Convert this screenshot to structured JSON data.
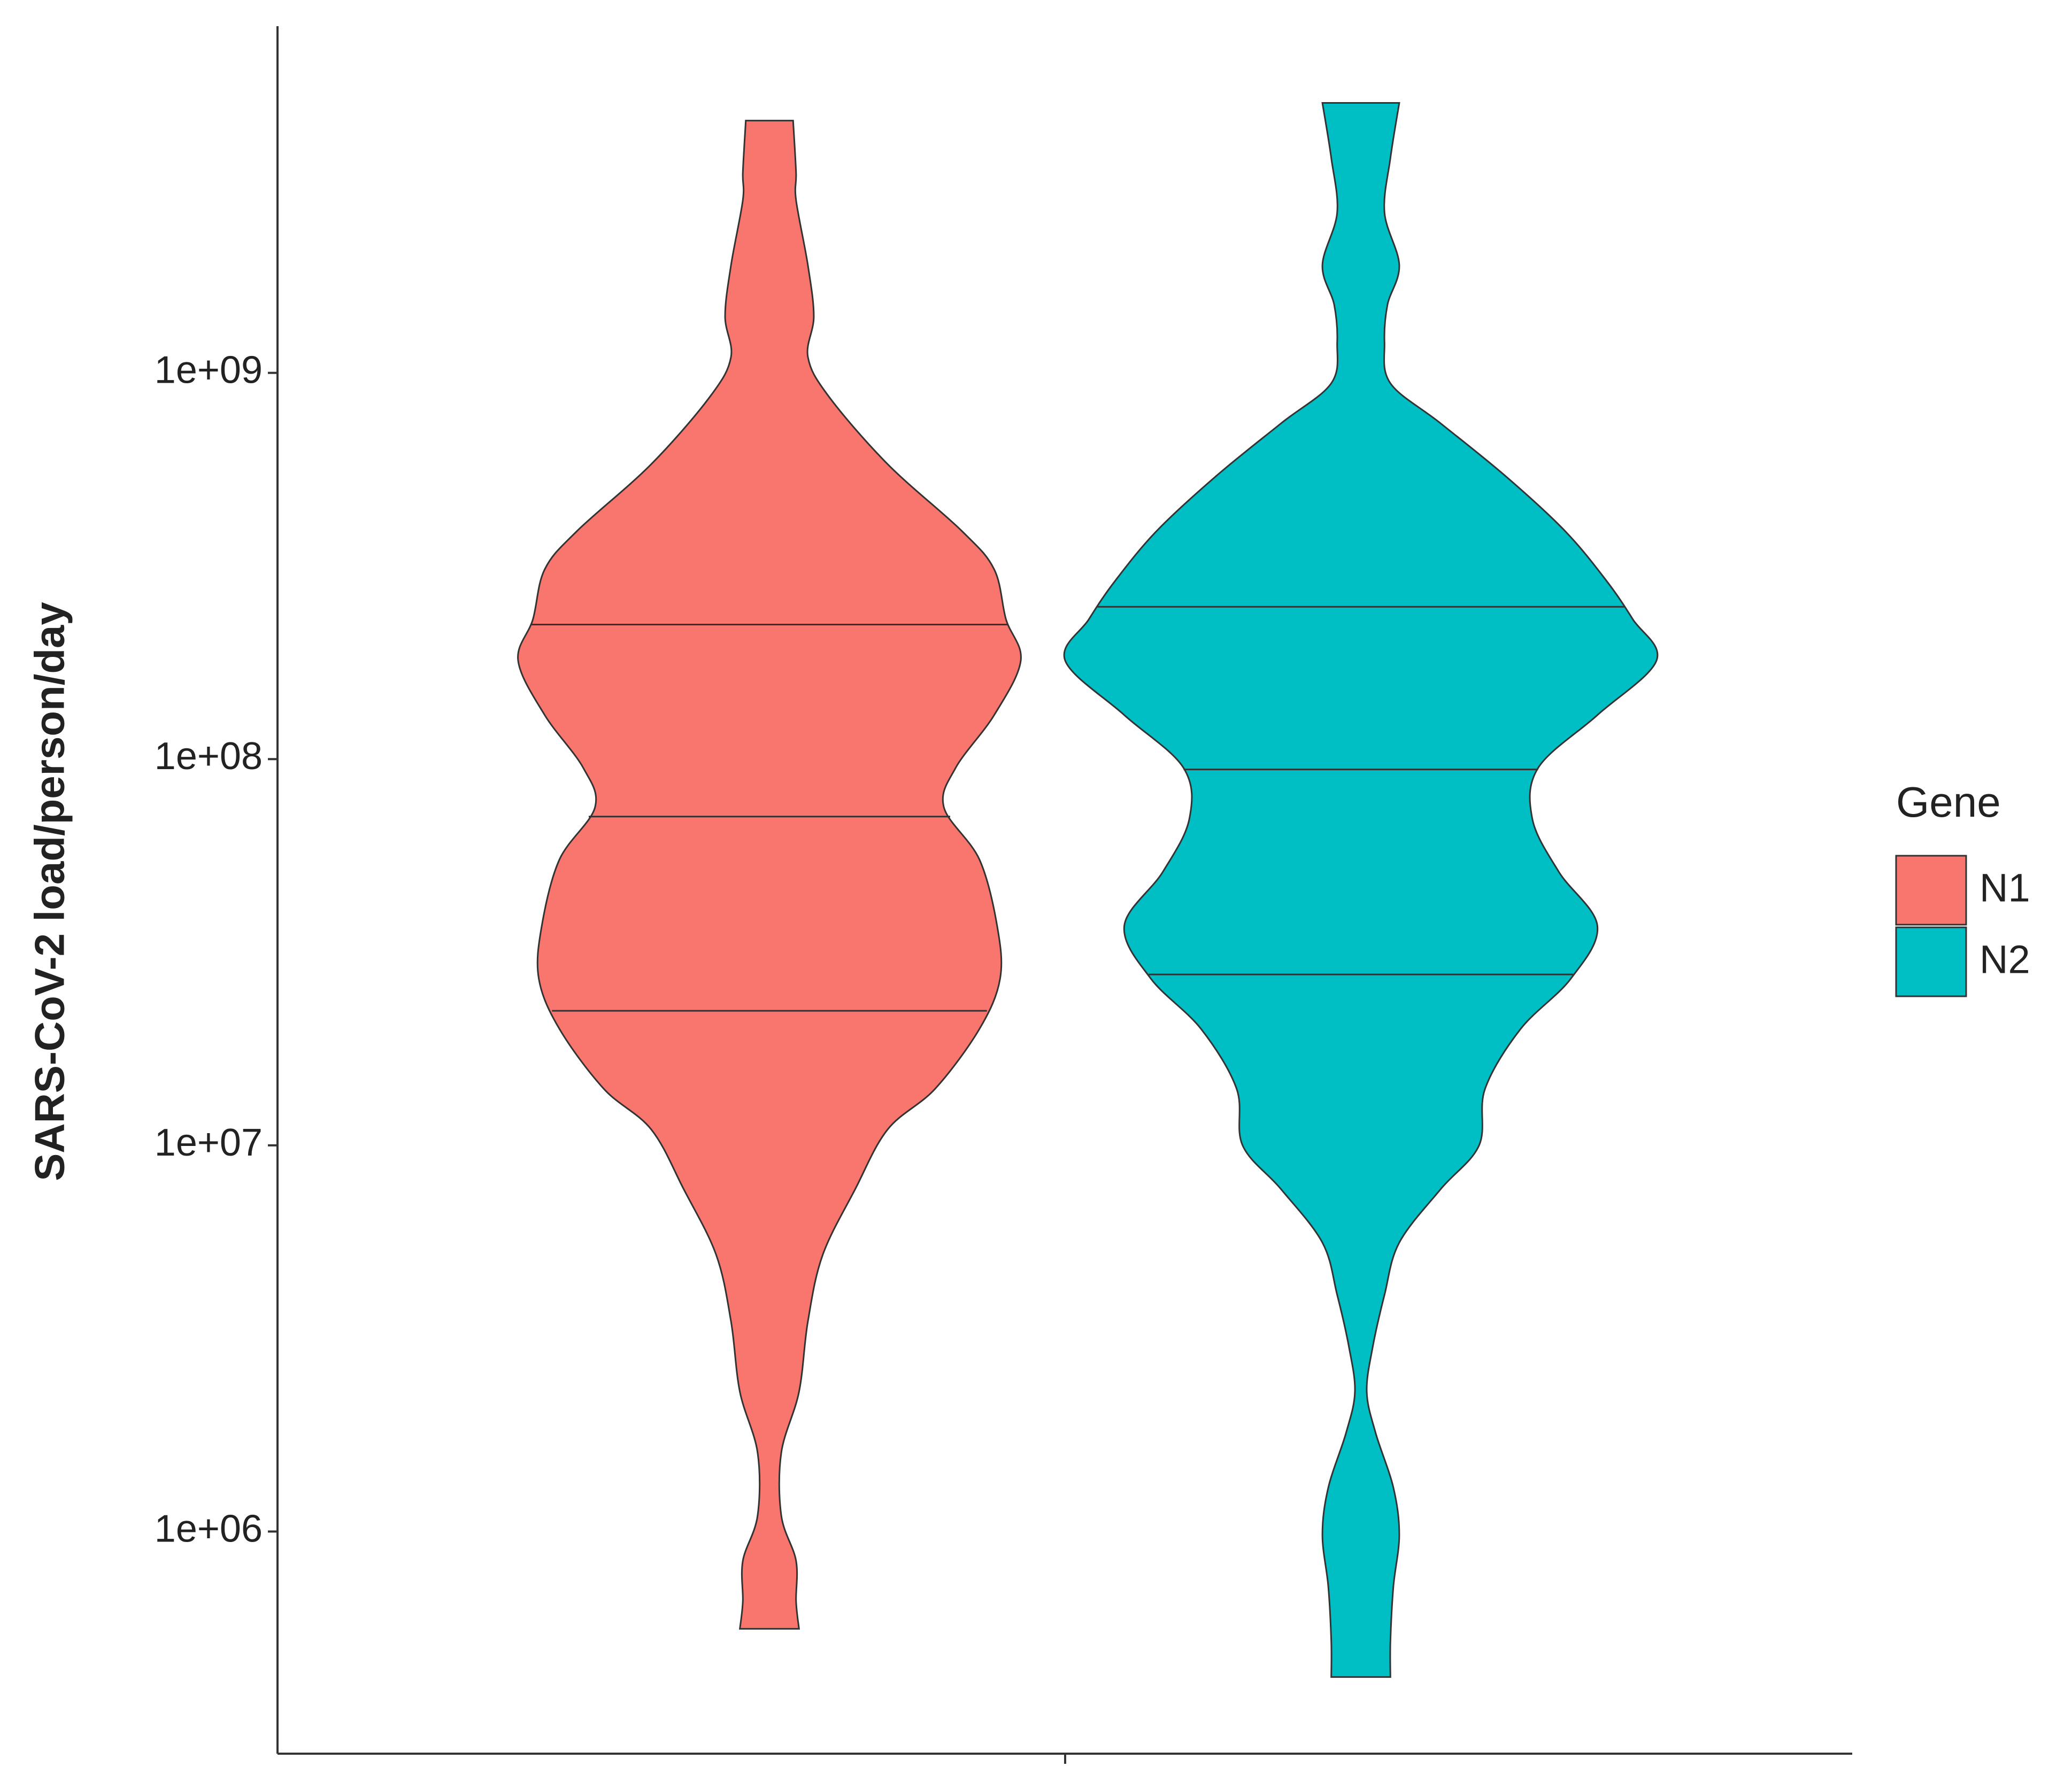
{
  "chart_data": {
    "type": "violin",
    "y_label": "SARS-CoV-2 load/person/day",
    "legend_title": "Gene",
    "legend_position": "right",
    "log_y": true,
    "ylim": [
      266000,
      7900000000
    ],
    "yticks": [
      {
        "value": 1000000,
        "label": "1e+06"
      },
      {
        "value": 10000000,
        "label": "1e+07"
      },
      {
        "value": 100000000,
        "label": "1e+08"
      },
      {
        "value": 1000000000,
        "label": "1e+09"
      }
    ],
    "series": [
      {
        "name": "N1",
        "color": "#F8766D",
        "y": [
          4500000000,
          3300000000,
          2800000000,
          1900000000,
          1400000000,
          1100000000,
          870000000,
          580000000,
          390000000,
          310000000,
          230000000,
          180000000,
          130000000,
          95000000,
          75000000,
          55000000,
          37000000,
          27000000,
          20000000,
          14000000,
          11000000,
          7700000,
          5200000,
          3500000,
          2300000,
          1600000,
          1100000,
          840000,
          660000,
          560000
        ],
        "density": [
          0.08,
          0.09,
          0.09,
          0.13,
          0.15,
          0.13,
          0.2,
          0.4,
          0.65,
          0.76,
          0.8,
          0.85,
          0.76,
          0.63,
          0.59,
          0.71,
          0.77,
          0.78,
          0.71,
          0.56,
          0.4,
          0.29,
          0.18,
          0.13,
          0.1,
          0.04,
          0.04,
          0.09,
          0.09,
          0.1
        ],
        "quartiles": [
          22300000,
          71000000,
          223000000
        ]
      },
      {
        "name": "N2",
        "color": "#00BFC4",
        "y": [
          5000000000,
          3600000000,
          2600000000,
          1900000000,
          1500000000,
          1200000000,
          940000000,
          740000000,
          540000000,
          390000000,
          290000000,
          230000000,
          180000000,
          130000000,
          95000000,
          70000000,
          51000000,
          37000000,
          27000000,
          20000000,
          14000000,
          10000000,
          7700000,
          5600000,
          4100000,
          3000000,
          2300000,
          1800000,
          1300000,
          980000,
          720000,
          520000,
          420000
        ],
        "density": [
          0.13,
          0.1,
          0.08,
          0.13,
          0.09,
          0.08,
          0.1,
          0.27,
          0.49,
          0.69,
          0.83,
          0.92,
          1,
          0.8,
          0.6,
          0.58,
          0.67,
          0.8,
          0.71,
          0.54,
          0.42,
          0.4,
          0.27,
          0.13,
          0.08,
          0.04,
          0.02,
          0.05,
          0.11,
          0.13,
          0.11,
          0.1,
          0.1
        ],
        "quartiles": [
          27700000,
          94000000,
          248000000
        ]
      }
    ]
  }
}
